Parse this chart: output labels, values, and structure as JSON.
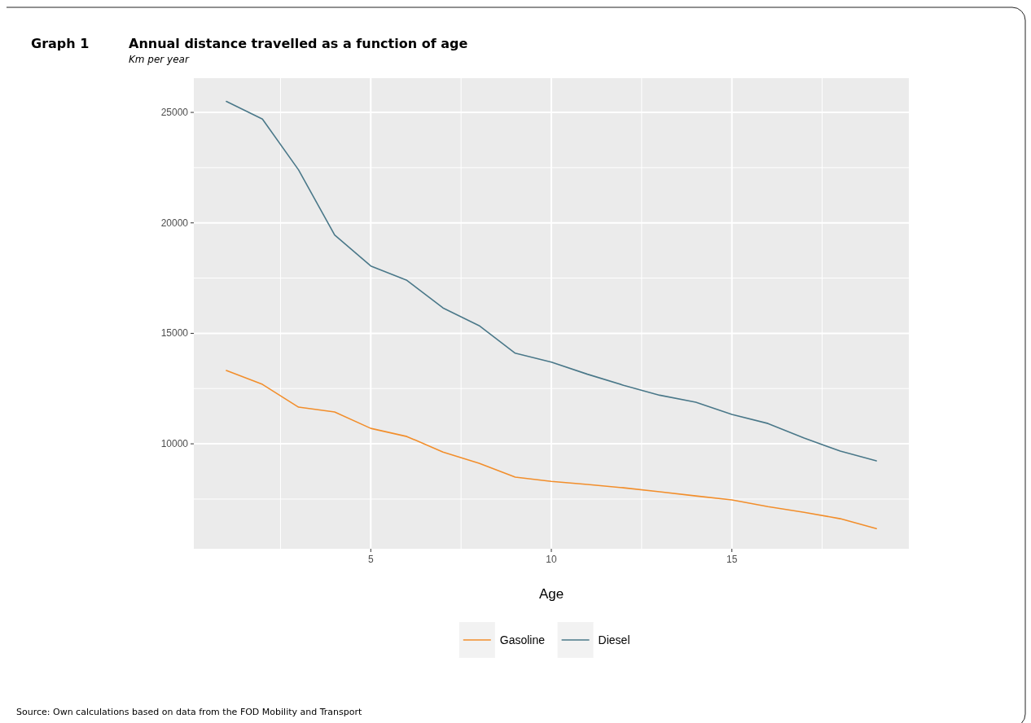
{
  "chart_data": {
    "type": "line",
    "title": "Annual distance travelled as a function of age",
    "subtitle": "Km per year",
    "xlabel": "Age",
    "annotations": [
      "Graph 1",
      "Source: Own calculations based on data from the FOD Mobility and Transport"
    ],
    "x": [
      1,
      2,
      3,
      4,
      5,
      6,
      7,
      8,
      9,
      10,
      11,
      12,
      13,
      14,
      15,
      16,
      17,
      18,
      19
    ],
    "series": [
      {
        "name": "Gasoline",
        "color": "#f28e2b",
        "values": [
          13320,
          12690,
          11660,
          11440,
          10700,
          10330,
          9630,
          9120,
          8490,
          8300,
          8160,
          8010,
          7830,
          7640,
          7460,
          7160,
          6900,
          6610,
          6160
        ]
      },
      {
        "name": "Diesel",
        "color": "#4a7889",
        "values": [
          25500,
          24700,
          22400,
          19450,
          18050,
          17400,
          16150,
          15350,
          14100,
          13700,
          13150,
          12650,
          12200,
          11880,
          11330,
          10920,
          10260,
          9670,
          9230
        ]
      }
    ],
    "xlim": [
      0.1,
      19.9
    ],
    "xticks": [
      5,
      10,
      15
    ],
    "ylim": [
      5250,
      26550
    ],
    "yticks": [
      10000,
      15000,
      20000,
      25000
    ],
    "grid": true,
    "legend": "bottom",
    "marker": "none",
    "line_style": "solid"
  }
}
